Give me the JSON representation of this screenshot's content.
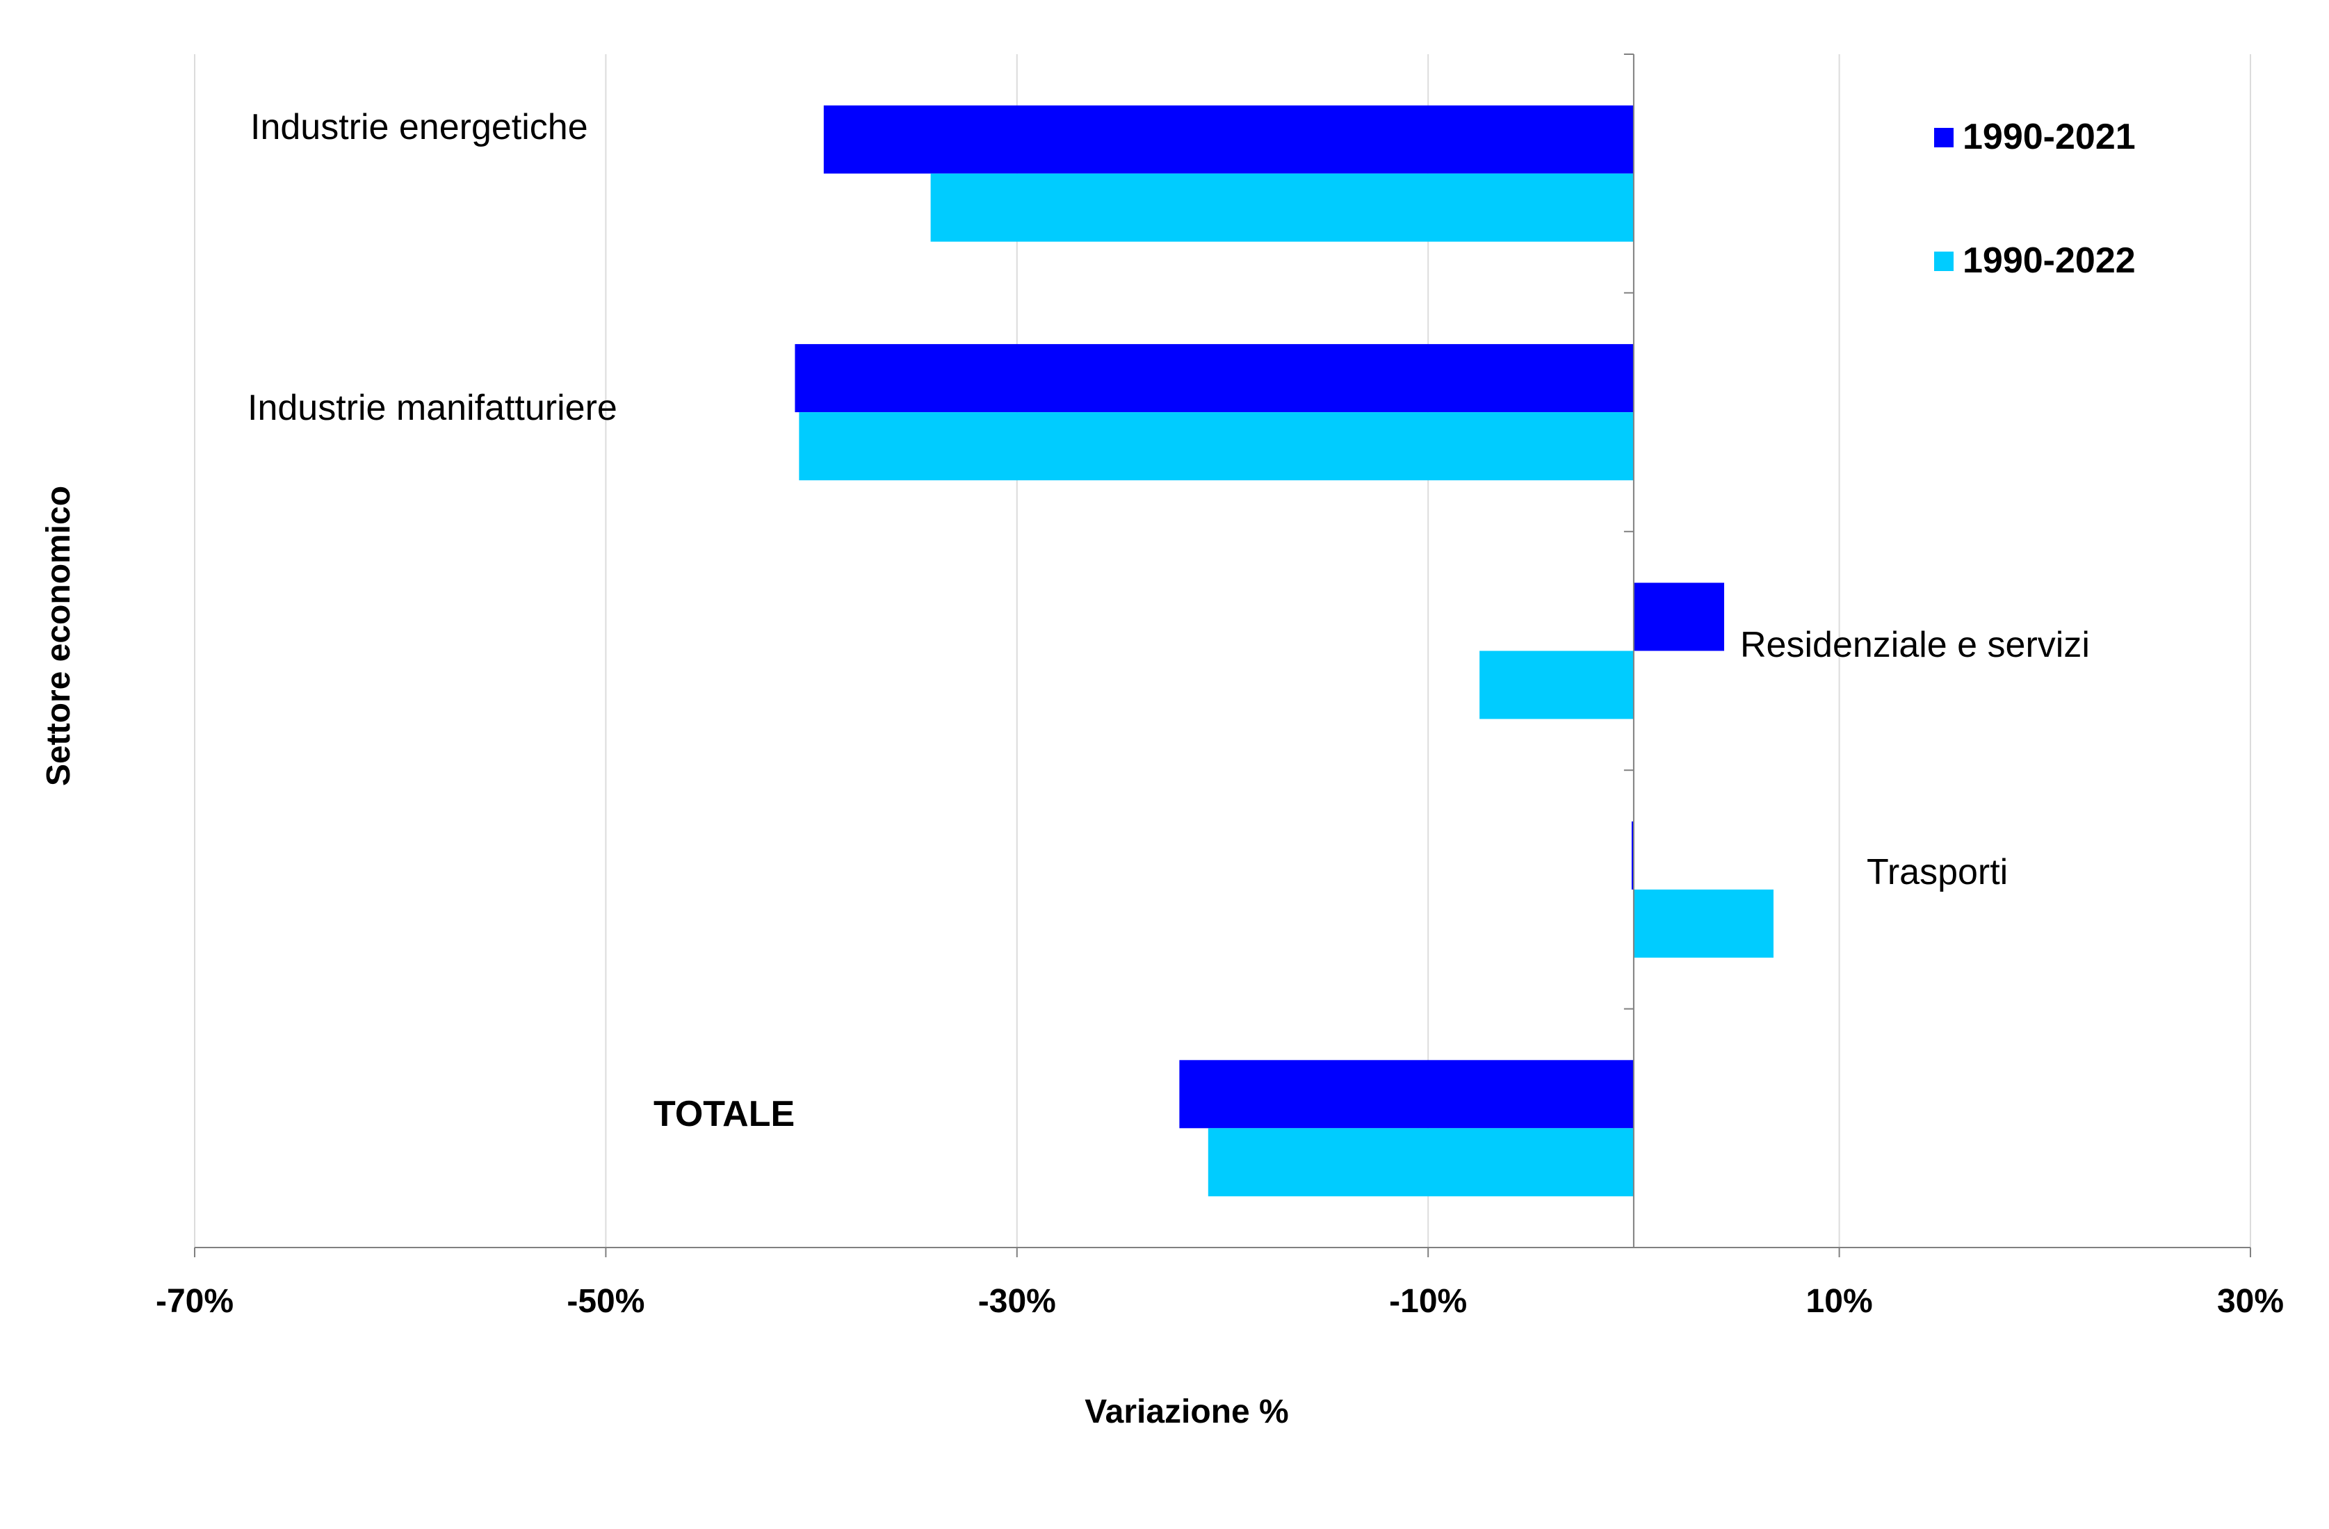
{
  "chart_data": {
    "type": "bar",
    "orientation": "horizontal",
    "xlabel": "Variazione %",
    "ylabel": "Settore economico",
    "xlim": [
      -70,
      30
    ],
    "x_ticks": [
      -70,
      -50,
      -30,
      -10,
      10,
      30
    ],
    "x_tick_labels": [
      "-70%",
      "-50%",
      "-30%",
      "-10%",
      "10%",
      "30%"
    ],
    "grid": "vertical",
    "legend_position": "top-right",
    "categories": [
      {
        "label": "Industrie energetiche",
        "bold": false,
        "label_side": "left"
      },
      {
        "label": "Industrie manifatturiere",
        "bold": false,
        "label_side": "left"
      },
      {
        "label": "Residenziale e servizi",
        "bold": false,
        "label_side": "right"
      },
      {
        "label": "Trasporti",
        "bold": false,
        "label_side": "right"
      },
      {
        "label": "TOTALE",
        "bold": true,
        "label_side": "left"
      }
    ],
    "series": [
      {
        "name": "1990-2021",
        "color": "#0000FF",
        "values": [
          -39.4,
          -40.8,
          4.4,
          -0.1,
          -22.1
        ]
      },
      {
        "name": "1990-2022",
        "color": "#00CCFF",
        "values": [
          -34.2,
          -40.6,
          -7.5,
          6.8,
          -20.7
        ]
      }
    ]
  }
}
